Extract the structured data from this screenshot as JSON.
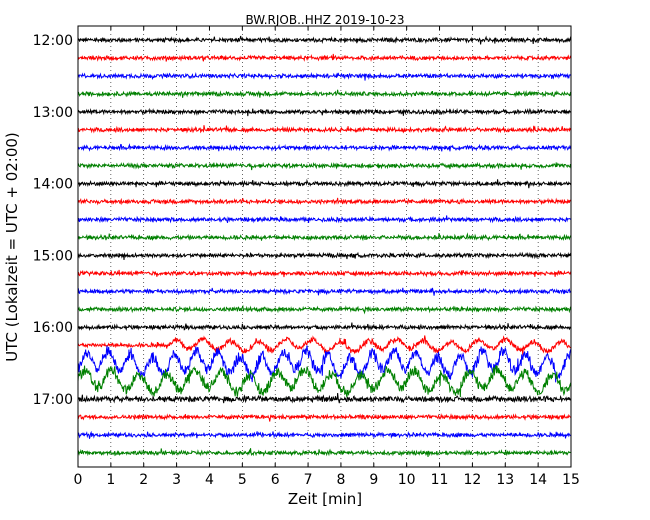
{
  "chart_data": {
    "type": "line",
    "title": "BW.RJOB..HHZ 2019-10-23",
    "xlabel": "Zeit  [min]",
    "ylabel": "UTC (Lokalzeit = UTC + 02:00)",
    "xlim": [
      0,
      15
    ],
    "x_ticks": [
      "0",
      "1",
      "2",
      "3",
      "4",
      "5",
      "6",
      "7",
      "8",
      "9",
      "10",
      "11",
      "12",
      "13",
      "14",
      "15"
    ],
    "y_ticks": [
      "12:00",
      "13:00",
      "14:00",
      "15:00",
      "16:00",
      "17:00"
    ],
    "grid": "vertical dotted lines at each minute",
    "trace_colors": [
      "#000000",
      "#ff0000",
      "#0000ff",
      "#008000"
    ],
    "traces": [
      {
        "start": "12:00",
        "amp": 1.0,
        "burst_start_min": null
      },
      {
        "start": "12:15",
        "amp": 1.0,
        "burst_start_min": null
      },
      {
        "start": "12:30",
        "amp": 1.0,
        "burst_start_min": null
      },
      {
        "start": "12:45",
        "amp": 1.0,
        "burst_start_min": null
      },
      {
        "start": "13:00",
        "amp": 1.0,
        "burst_start_min": null
      },
      {
        "start": "13:15",
        "amp": 1.0,
        "burst_start_min": null
      },
      {
        "start": "13:30",
        "amp": 1.0,
        "burst_start_min": null
      },
      {
        "start": "13:45",
        "amp": 1.0,
        "burst_start_min": null
      },
      {
        "start": "14:00",
        "amp": 1.0,
        "burst_start_min": null
      },
      {
        "start": "14:15",
        "amp": 1.0,
        "burst_start_min": null
      },
      {
        "start": "14:30",
        "amp": 1.0,
        "burst_start_min": null
      },
      {
        "start": "14:45",
        "amp": 1.0,
        "burst_start_min": null
      },
      {
        "start": "15:00",
        "amp": 1.0,
        "burst_start_min": null
      },
      {
        "start": "15:15",
        "amp": 1.0,
        "burst_start_min": null
      },
      {
        "start": "15:30",
        "amp": 1.0,
        "burst_start_min": null
      },
      {
        "start": "15:45",
        "amp": 1.0,
        "burst_start_min": null
      },
      {
        "start": "16:00",
        "amp": 1.0,
        "burst_start_min": null
      },
      {
        "start": "16:15",
        "amp": 1.6,
        "burst_start_min": 2.8
      },
      {
        "start": "16:30",
        "amp": 3.2,
        "burst_start_min": 0
      },
      {
        "start": "16:45",
        "amp": 3.0,
        "burst_start_min": 0
      },
      {
        "start": "17:00",
        "amp": 1.4,
        "burst_start_min": null
      },
      {
        "start": "17:15",
        "amp": 1.0,
        "burst_start_min": null
      },
      {
        "start": "17:30",
        "amp": 1.0,
        "burst_start_min": null
      },
      {
        "start": "17:45",
        "amp": 1.0,
        "burst_start_min": null
      }
    ]
  }
}
